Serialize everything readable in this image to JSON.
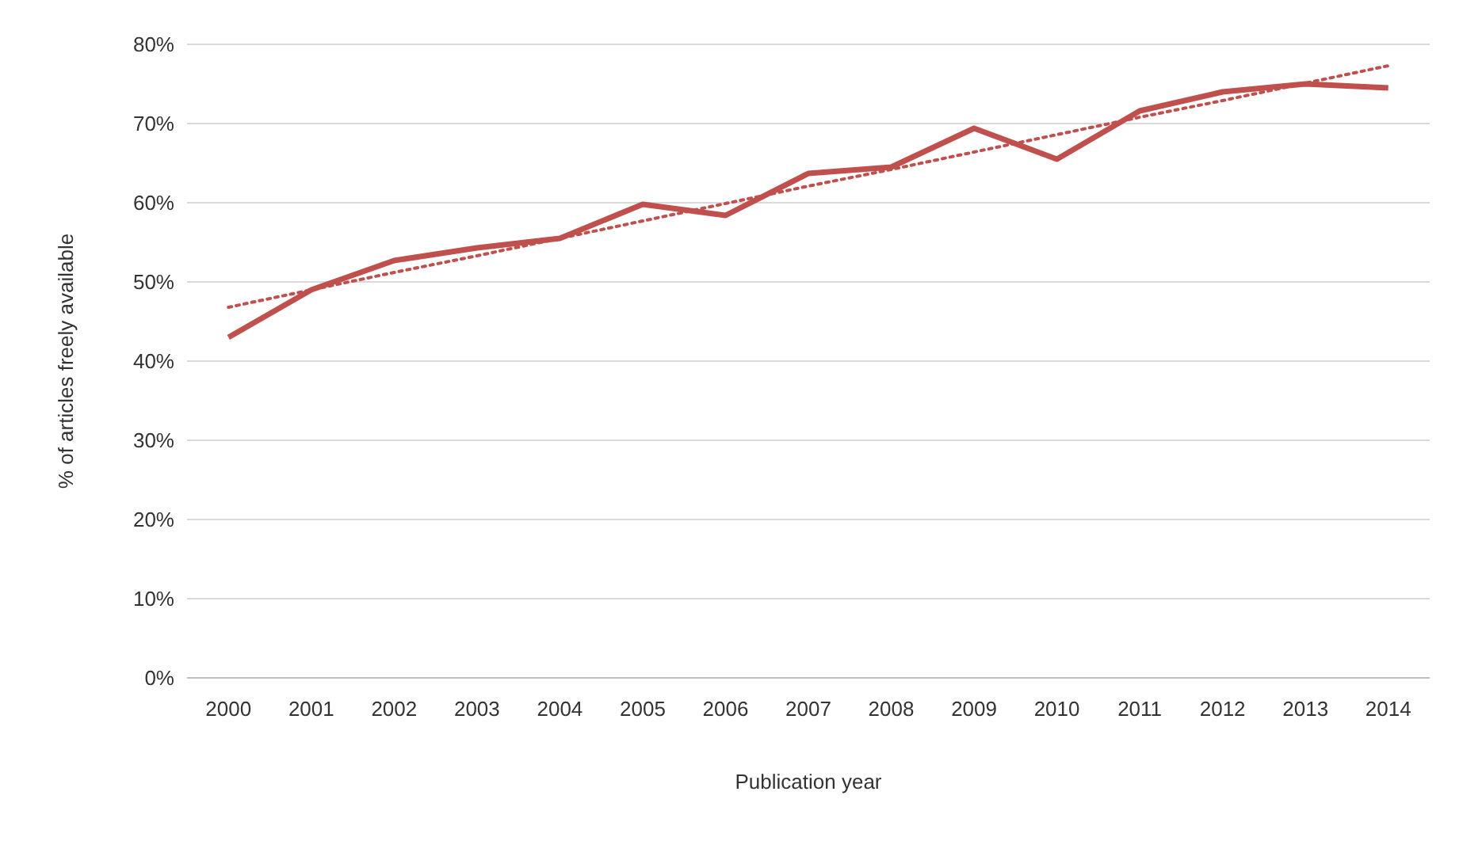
{
  "chart_data": {
    "type": "line",
    "xlabel": "Publication year",
    "ylabel": "% of articles freely available",
    "categories": [
      "2000",
      "2001",
      "2002",
      "2003",
      "2004",
      "2005",
      "2006",
      "2007",
      "2008",
      "2009",
      "2010",
      "2011",
      "2012",
      "2013",
      "2014"
    ],
    "series": [
      {
        "color": "#c0504d",
        "values": [
          43,
          49,
          52.7,
          54.3,
          55.5,
          59.8,
          58.4,
          63.7,
          64.5,
          69.4,
          65.5,
          71.6,
          74,
          75,
          74.5
        ],
        "line_style": "solid"
      },
      {
        "type": "line",
        "color": "#c0504d",
        "line_style": "dotted",
        "values": [
          46.8,
          49.0,
          51.2,
          53.3,
          55.5,
          57.7,
          59.9,
          62.1,
          64.2,
          66.4,
          68.6,
          70.8,
          72.9,
          75.1,
          77.3
        ]
      }
    ],
    "ylim": [
      0,
      80
    ],
    "yticks": [
      {
        "value": 0,
        "label": "0%"
      },
      {
        "value": 10,
        "label": "10%"
      },
      {
        "value": 20,
        "label": "20%"
      },
      {
        "value": 30,
        "label": "30%"
      },
      {
        "value": 40,
        "label": "40%"
      },
      {
        "value": 50,
        "label": "50%"
      },
      {
        "value": 60,
        "label": "60%"
      },
      {
        "value": 70,
        "label": "70%"
      },
      {
        "value": 80,
        "label": "80%"
      }
    ],
    "grid": "y",
    "marker": "none"
  }
}
